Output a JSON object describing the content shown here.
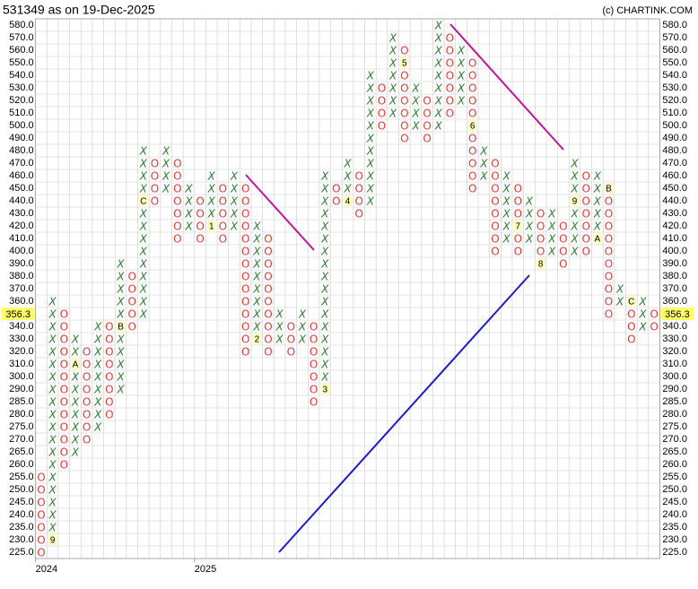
{
  "chart_data": {
    "type": "point_and_figure",
    "title": "531349 as on 19-Dec-2025",
    "credit": "(c) CHARTINK.COM",
    "x_color": "#2e7d32",
    "o_color": "#e53935",
    "yticks": [
      {
        "value": 580,
        "label": "580.0"
      },
      {
        "value": 570,
        "label": "570.0"
      },
      {
        "value": 560,
        "label": "560.0"
      },
      {
        "value": 550,
        "label": "550.0"
      },
      {
        "value": 540,
        "label": "540.0"
      },
      {
        "value": 530,
        "label": "530.0"
      },
      {
        "value": 520,
        "label": "520.0"
      },
      {
        "value": 510,
        "label": "510.0"
      },
      {
        "value": 500,
        "label": "500.0"
      },
      {
        "value": 490,
        "label": "490.0"
      },
      {
        "value": 480,
        "label": "480.0"
      },
      {
        "value": 470,
        "label": "470.0"
      },
      {
        "value": 460,
        "label": "460.0"
      },
      {
        "value": 450,
        "label": "450.0"
      },
      {
        "value": 440,
        "label": "440.0"
      },
      {
        "value": 430,
        "label": "430.0"
      },
      {
        "value": 420,
        "label": "420.0"
      },
      {
        "value": 410,
        "label": "410.0"
      },
      {
        "value": 400,
        "label": "400.0"
      },
      {
        "value": 390,
        "label": "390.0"
      },
      {
        "value": 380,
        "label": "380.0"
      },
      {
        "value": 370,
        "label": "370.0"
      },
      {
        "value": 360,
        "label": "360.0"
      },
      {
        "value": 350,
        "label": "350.0"
      },
      {
        "value": 340,
        "label": "340.0"
      },
      {
        "value": 330,
        "label": "330.0"
      },
      {
        "value": 320,
        "label": "320.0"
      },
      {
        "value": 310,
        "label": "310.0"
      },
      {
        "value": 300,
        "label": "300.0"
      },
      {
        "value": 290,
        "label": "290.0"
      },
      {
        "value": 285,
        "label": "285.0"
      },
      {
        "value": 280,
        "label": "280.0"
      },
      {
        "value": 275,
        "label": "275.0"
      },
      {
        "value": 270,
        "label": "270.0"
      },
      {
        "value": 265,
        "label": "265.0"
      },
      {
        "value": 260,
        "label": "260.0"
      },
      {
        "value": 255,
        "label": "255.0"
      },
      {
        "value": 250,
        "label": "250.0"
      },
      {
        "value": 245,
        "label": "245.0"
      },
      {
        "value": 240,
        "label": "240.0"
      },
      {
        "value": 235,
        "label": "235.0"
      },
      {
        "value": 230,
        "label": "230.0"
      },
      {
        "value": 225,
        "label": "225.0"
      }
    ],
    "last_price": 356.3,
    "year_labels": [
      {
        "column": 0,
        "label": "2024"
      },
      {
        "column": 14,
        "label": "2025"
      }
    ],
    "columns": [
      {
        "type": "O",
        "high": 255,
        "low": 225
      },
      {
        "type": "X",
        "low": 230,
        "high": 360,
        "markers": [
          {
            "level": 230,
            "label": "9"
          }
        ]
      },
      {
        "type": "O",
        "high": 350,
        "low": 260
      },
      {
        "type": "X",
        "low": 265,
        "high": 330,
        "markers": [
          {
            "level": 310,
            "label": "A"
          }
        ]
      },
      {
        "type": "O",
        "high": 320,
        "low": 270
      },
      {
        "type": "X",
        "low": 275,
        "high": 340
      },
      {
        "type": "O",
        "high": 340,
        "low": 280
      },
      {
        "type": "X",
        "low": 290,
        "high": 390,
        "markers": [
          {
            "level": 340,
            "label": "B"
          }
        ]
      },
      {
        "type": "O",
        "high": 380,
        "low": 340
      },
      {
        "type": "X",
        "low": 350,
        "high": 480,
        "markers": [
          {
            "level": 440,
            "label": "C"
          }
        ]
      },
      {
        "type": "O",
        "high": 470,
        "low": 440
      },
      {
        "type": "X",
        "low": 450,
        "high": 480
      },
      {
        "type": "O",
        "high": 470,
        "low": 410
      },
      {
        "type": "X",
        "low": 420,
        "high": 450
      },
      {
        "type": "O",
        "high": 440,
        "low": 410
      },
      {
        "type": "X",
        "low": 420,
        "high": 460,
        "markers": [
          {
            "level": 420,
            "label": "1"
          }
        ]
      },
      {
        "type": "O",
        "high": 450,
        "low": 410
      },
      {
        "type": "X",
        "low": 420,
        "high": 460
      },
      {
        "type": "O",
        "high": 450,
        "low": 320
      },
      {
        "type": "X",
        "low": 330,
        "high": 420,
        "markers": [
          {
            "level": 330,
            "label": "2"
          }
        ]
      },
      {
        "type": "O",
        "high": 410,
        "low": 320
      },
      {
        "type": "X",
        "low": 330,
        "high": 350
      },
      {
        "type": "O",
        "high": 340,
        "low": 320
      },
      {
        "type": "X",
        "low": 330,
        "high": 350
      },
      {
        "type": "O",
        "high": 340,
        "low": 285
      },
      {
        "type": "X",
        "low": 290,
        "high": 460,
        "markers": [
          {
            "level": 290,
            "label": "3"
          }
        ]
      },
      {
        "type": "O",
        "high": 450,
        "low": 440
      },
      {
        "type": "X",
        "low": 440,
        "high": 470,
        "markers": [
          {
            "level": 440,
            "label": "4"
          }
        ]
      },
      {
        "type": "O",
        "high": 460,
        "low": 430
      },
      {
        "type": "X",
        "low": 440,
        "high": 540
      },
      {
        "type": "O",
        "high": 530,
        "low": 500
      },
      {
        "type": "X",
        "low": 510,
        "high": 570
      },
      {
        "type": "O",
        "high": 560,
        "low": 490,
        "markers": [
          {
            "level": 550,
            "label": "5"
          }
        ]
      },
      {
        "type": "X",
        "low": 500,
        "high": 530
      },
      {
        "type": "O",
        "high": 520,
        "low": 490
      },
      {
        "type": "X",
        "low": 500,
        "high": 580
      },
      {
        "type": "O",
        "high": 570,
        "low": 510
      },
      {
        "type": "X",
        "low": 520,
        "high": 560
      },
      {
        "type": "O",
        "high": 550,
        "low": 450,
        "markers": [
          {
            "level": 500,
            "label": "6"
          }
        ]
      },
      {
        "type": "X",
        "low": 460,
        "high": 480
      },
      {
        "type": "O",
        "high": 470,
        "low": 400
      },
      {
        "type": "X",
        "low": 410,
        "high": 460
      },
      {
        "type": "O",
        "high": 450,
        "low": 400,
        "markers": [
          {
            "level": 420,
            "label": "7"
          }
        ]
      },
      {
        "type": "X",
        "low": 410,
        "high": 440
      },
      {
        "type": "O",
        "high": 430,
        "low": 390,
        "markers": [
          {
            "level": 390,
            "label": "8"
          }
        ]
      },
      {
        "type": "X",
        "low": 400,
        "high": 430
      },
      {
        "type": "O",
        "high": 420,
        "low": 390
      },
      {
        "type": "X",
        "low": 400,
        "high": 470,
        "markers": [
          {
            "level": 440,
            "label": "9"
          }
        ]
      },
      {
        "type": "O",
        "high": 460,
        "low": 400
      },
      {
        "type": "X",
        "low": 410,
        "high": 460,
        "markers": [
          {
            "level": 410,
            "label": "A"
          }
        ]
      },
      {
        "type": "O",
        "high": 450,
        "low": 350,
        "markers": [
          {
            "level": 450,
            "label": "B"
          }
        ]
      },
      {
        "type": "X",
        "low": 360,
        "high": 370
      },
      {
        "type": "O",
        "high": 360,
        "low": 330,
        "markers": [
          {
            "level": 360,
            "label": "C"
          }
        ]
      },
      {
        "type": "X",
        "low": 340,
        "high": 360
      },
      {
        "type": "O",
        "high": 350,
        "low": 340
      }
    ]
  }
}
